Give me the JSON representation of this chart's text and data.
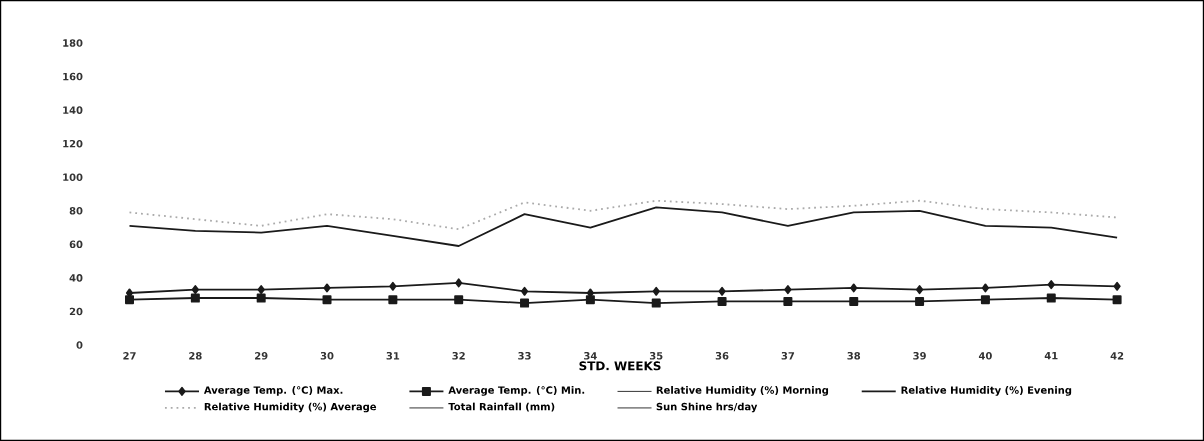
{
  "chart_data": {
    "type": "line",
    "xlabel": "STD. WEEKS",
    "categories": [
      "27",
      "28",
      "29",
      "30",
      "31",
      "32",
      "33",
      "34",
      "35",
      "36",
      "37",
      "38",
      "39",
      "40",
      "41",
      "42"
    ],
    "ylim": [
      0,
      180
    ],
    "yticks": [
      0,
      20,
      40,
      60,
      80,
      100,
      120,
      140,
      160,
      180
    ],
    "grid": false,
    "legend": "bottom",
    "series": [
      {
        "name": "Average Temp. (°C) Max.",
        "color": "#1a1a1a",
        "marker": "diamond",
        "line_style": "solid",
        "values": [
          31,
          33,
          33,
          34,
          35,
          37,
          32,
          31,
          32,
          32,
          33,
          34,
          33,
          34,
          36,
          35
        ]
      },
      {
        "name": "Average Temp. (°C) Min.",
        "color": "#1a1a1a",
        "marker": "square",
        "line_style": "solid",
        "values": [
          27,
          28,
          28,
          27,
          27,
          27,
          25,
          27,
          25,
          26,
          26,
          26,
          26,
          27,
          28,
          27
        ]
      },
      {
        "name": "Relative Humidity (%) Morning",
        "marker": "none",
        "line_style": "solid",
        "values": [
          null,
          null,
          null,
          null,
          null,
          null,
          null,
          null,
          null,
          null,
          null,
          null,
          null,
          null,
          null,
          null
        ]
      },
      {
        "name": "Relative Humidity (%) Evening",
        "color": "#1a1a1a",
        "marker": "none",
        "line_style": "solid",
        "values": [
          71,
          68,
          67,
          71,
          65,
          59,
          78,
          70,
          82,
          79,
          71,
          79,
          80,
          71,
          70,
          64
        ]
      },
      {
        "name": "Relative Humidity (%) Average",
        "color": "#aaaaaa",
        "marker": "none",
        "line_style": "dotted",
        "values": [
          79,
          75,
          71,
          78,
          75,
          69,
          85,
          80,
          86,
          84,
          81,
          83,
          86,
          81,
          79,
          76
        ]
      },
      {
        "name": "Total Rainfall (mm)",
        "marker": "none",
        "line_style": "solid",
        "values": [
          null,
          null,
          null,
          null,
          null,
          null,
          null,
          null,
          null,
          null,
          null,
          null,
          null,
          null,
          null,
          null
        ]
      },
      {
        "name": "Sun Shine hrs/day",
        "marker": "none",
        "line_style": "solid",
        "values": [
          null,
          null,
          null,
          null,
          null,
          null,
          null,
          null,
          null,
          null,
          null,
          null,
          null,
          null,
          null,
          null
        ]
      }
    ]
  }
}
